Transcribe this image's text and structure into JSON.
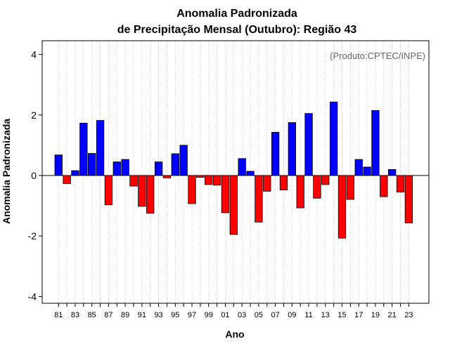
{
  "chart_data": {
    "type": "bar",
    "title": "Anomalia Padronizada",
    "subtitle": "de Precipitação Mensal (Outubro): Região 43",
    "credit": "(Produto:CPTEC/INPE)",
    "xlabel": "Ano",
    "ylabel": "Anomalia Padronizada",
    "ylim": [
      -4,
      4
    ],
    "yticks": [
      -4,
      -2,
      0,
      2,
      4
    ],
    "ytick_labels": [
      "-4",
      "-2",
      "0",
      "2",
      "4"
    ],
    "grid": "vertical dotted",
    "positive_color": "#0000ff",
    "negative_color": "#ff0000",
    "categories": [
      "81",
      "82",
      "83",
      "84",
      "85",
      "86",
      "87",
      "88",
      "89",
      "90",
      "91",
      "92",
      "93",
      "94",
      "95",
      "96",
      "97",
      "98",
      "99",
      "00",
      "01",
      "02",
      "03",
      "04",
      "05",
      "06",
      "07",
      "08",
      "09",
      "10",
      "11",
      "12",
      "13",
      "14",
      "15",
      "16",
      "17",
      "18",
      "19",
      "20",
      "21",
      "22",
      "23"
    ],
    "xtick_labels": [
      "81",
      "",
      "83",
      "",
      "85",
      "",
      "87",
      "",
      "89",
      "",
      "91",
      "",
      "93",
      "",
      "95",
      "",
      "97",
      "",
      "99",
      "",
      "01",
      "",
      "03",
      "",
      "05",
      "",
      "07",
      "",
      "09",
      "",
      "11",
      "",
      "13",
      "",
      "15",
      "",
      "17",
      "",
      "19",
      "",
      "21",
      "",
      "23"
    ],
    "values": [
      0.68,
      -0.27,
      0.16,
      1.73,
      0.73,
      1.82,
      -0.97,
      0.45,
      0.53,
      -0.35,
      -1.02,
      -1.25,
      0.45,
      -0.08,
      0.72,
      1.0,
      -0.93,
      -0.06,
      -0.3,
      -0.32,
      -1.23,
      -1.95,
      0.56,
      0.14,
      -1.54,
      -0.52,
      1.43,
      -0.48,
      1.75,
      -1.07,
      2.05,
      -0.75,
      -0.3,
      2.43,
      -2.07,
      -0.79,
      0.53,
      0.28,
      2.15,
      -0.7,
      0.2,
      -0.55,
      -1.57
    ]
  }
}
